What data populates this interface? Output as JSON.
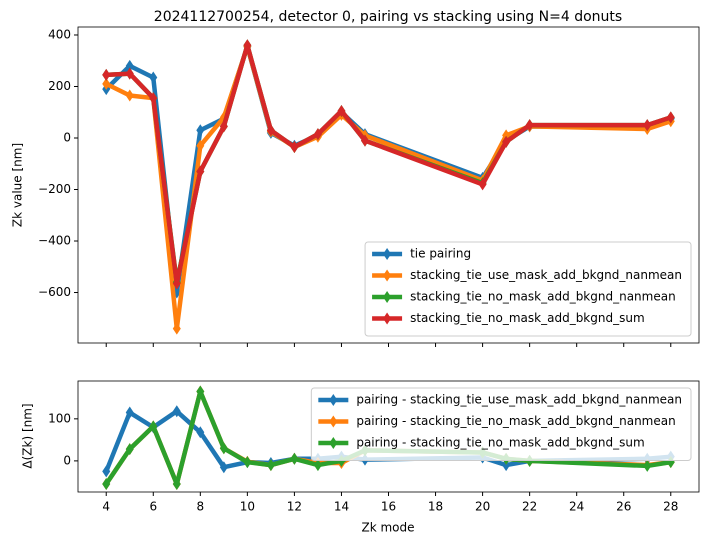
{
  "chart_data": [
    {
      "type": "line",
      "title": "2024112700254, detector 0, pairing vs stacking using N=4 donuts",
      "ylabel": "Zk value [nm]",
      "x": [
        4,
        5,
        6,
        7,
        8,
        9,
        10,
        11,
        12,
        13,
        14,
        15,
        20,
        21,
        22,
        27,
        28
      ],
      "series": [
        {
          "name": "tie pairing",
          "color": "#1f77b4",
          "values": [
            190,
            280,
            235,
            -600,
            30,
            75,
            355,
            20,
            -30,
            10,
            100,
            15,
            -155,
            -10,
            45,
            40,
            75
          ]
        },
        {
          "name": "stacking_tie_use_mask_add_bkgnd_nanmean",
          "color": "#ff7f0e",
          "values": [
            210,
            165,
            155,
            -740,
            -30,
            80,
            355,
            25,
            -35,
            5,
            90,
            10,
            -165,
            10,
            45,
            35,
            65
          ]
        },
        {
          "name": "stacking_tie_no_mask_add_bkgnd_nanmean",
          "color": "#2ca02c",
          "values": [
            245,
            250,
            155,
            -560,
            -130,
            45,
            360,
            30,
            -35,
            15,
            105,
            -10,
            -175,
            -15,
            50,
            50,
            80
          ]
        },
        {
          "name": "stacking_tie_no_mask_add_bkgnd_sum",
          "color": "#d62728",
          "values": [
            245,
            250,
            155,
            -565,
            -130,
            45,
            360,
            30,
            -35,
            15,
            105,
            -10,
            -180,
            -15,
            50,
            50,
            80
          ]
        }
      ],
      "xlim": [
        2.8,
        29.2
      ],
      "ylim": [
        -796,
        431
      ],
      "yticks": [
        {
          "value": -600,
          "label": "−600"
        },
        {
          "value": -400,
          "label": "−400"
        },
        {
          "value": -200,
          "label": "−200"
        },
        0,
        200,
        400
      ],
      "legend": "lower right"
    },
    {
      "type": "line",
      "xlabel": "Zk mode",
      "ylabel": "Δ(Zk) [nm]",
      "x": [
        4,
        5,
        6,
        7,
        8,
        9,
        10,
        11,
        12,
        13,
        14,
        15,
        20,
        21,
        22,
        27,
        28
      ],
      "series": [
        {
          "name": "pairing -  stacking_tie_use_mask_add_bkgnd_nanmean",
          "color": "#1f77b4",
          "values": [
            -25,
            115,
            80,
            118,
            68,
            -15,
            -3,
            -5,
            5,
            5,
            10,
            3,
            8,
            -10,
            0,
            5,
            10
          ]
        },
        {
          "name": "pairing -  stacking_tie_no_mask_add_bkgnd_nanmean",
          "color": "#ff7f0e",
          "values": [
            -55,
            28,
            82,
            -55,
            165,
            30,
            -2,
            -10,
            5,
            -5,
            -5,
            25,
            20,
            5,
            0,
            -10,
            -3
          ]
        },
        {
          "name": "pairing -  stacking_tie_no_mask_add_bkgnd_sum",
          "color": "#2ca02c",
          "values": [
            -55,
            28,
            82,
            -55,
            165,
            30,
            -3,
            -10,
            5,
            -10,
            0,
            25,
            20,
            5,
            0,
            -12,
            -3
          ]
        }
      ],
      "xlim": [
        2.8,
        29.2
      ],
      "ylim": [
        -74,
        190
      ],
      "xticks": [
        4,
        6,
        8,
        10,
        12,
        14,
        16,
        18,
        20,
        22,
        24,
        26,
        28
      ],
      "yticks": [
        0,
        100
      ],
      "legend": "upper right"
    }
  ]
}
